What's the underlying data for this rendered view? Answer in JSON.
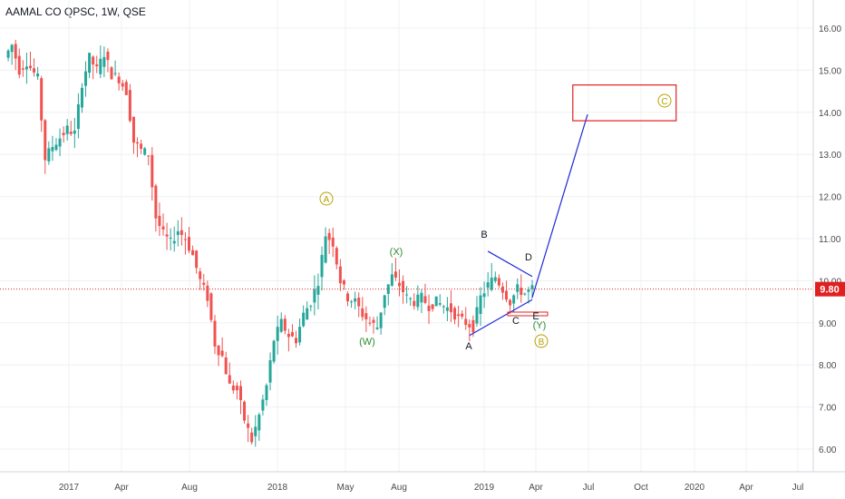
{
  "header": {
    "title": "AAMAL CO QPSC, 1W, QSE"
  },
  "price_axis": {
    "labels": [
      "16.00",
      "15.00",
      "14.00",
      "13.00",
      "12.00",
      "11.00",
      "10.00",
      "9.00",
      "8.00",
      "7.00",
      "6.00"
    ],
    "current_price_label": "9.80"
  },
  "time_axis": {
    "labels": [
      "2017",
      "Apr",
      "Aug",
      "2018",
      "May",
      "Aug",
      "2019",
      "Apr",
      "Jul",
      "Oct",
      "2020",
      "Apr",
      "Jul"
    ]
  },
  "wave_labels": {
    "A_circled": "A",
    "B_circled": "B",
    "C_circled": "C",
    "W": "(W)",
    "X": "(X)",
    "Y": "(Y)",
    "a": "A",
    "b": "B",
    "c": "C",
    "d": "D",
    "e": "E"
  },
  "colors": {
    "up": "#26a69a",
    "down": "#ef5350",
    "trendline": "#1f2ad6",
    "target_box": "#e02020",
    "price_line": "#e02020",
    "grid": "#eef0f3"
  },
  "chart_data": {
    "type": "candlestick",
    "title": "AAMAL CO QPSC, 1W, QSE",
    "ylim": [
      5.6,
      16.6
    ],
    "y_ticks": [
      6,
      7,
      8,
      9,
      10,
      11,
      12,
      13,
      14,
      15,
      16
    ],
    "current_price": 9.8,
    "price_path": [
      [
        0,
        15.3
      ],
      [
        2,
        15.6
      ],
      [
        4,
        15.0
      ],
      [
        6,
        15.2
      ],
      [
        9,
        14.8
      ],
      [
        11,
        12.9
      ],
      [
        13,
        13.2
      ],
      [
        15,
        13.4
      ],
      [
        17,
        13.6
      ],
      [
        19,
        13.5
      ],
      [
        21,
        14.7
      ],
      [
        23,
        15.3
      ],
      [
        25,
        15.0
      ],
      [
        27,
        15.4
      ],
      [
        29,
        14.9
      ],
      [
        31,
        14.8
      ],
      [
        33,
        14.5
      ],
      [
        35,
        13.3
      ],
      [
        37,
        13.1
      ],
      [
        39,
        13.0
      ],
      [
        41,
        11.5
      ],
      [
        43,
        11.1
      ],
      [
        45,
        10.9
      ],
      [
        47,
        11.2
      ],
      [
        49,
        11.0
      ],
      [
        51,
        10.6
      ],
      [
        53,
        10.0
      ],
      [
        55,
        9.6
      ],
      [
        57,
        8.5
      ],
      [
        59,
        8.2
      ],
      [
        61,
        7.5
      ],
      [
        63,
        7.4
      ],
      [
        65,
        6.7
      ],
      [
        67,
        6.2
      ],
      [
        69,
        6.8
      ],
      [
        71,
        7.5
      ],
      [
        73,
        8.6
      ],
      [
        75,
        9.0
      ],
      [
        77,
        8.7
      ],
      [
        79,
        8.6
      ],
      [
        81,
        9.2
      ],
      [
        83,
        9.5
      ],
      [
        85,
        10.0
      ],
      [
        87,
        11.1
      ],
      [
        89,
        10.9
      ],
      [
        91,
        10.0
      ],
      [
        93,
        9.6
      ],
      [
        95,
        9.5
      ],
      [
        97,
        9.2
      ],
      [
        99,
        9.0
      ],
      [
        101,
        8.9
      ],
      [
        103,
        9.7
      ],
      [
        105,
        10.1
      ],
      [
        107,
        9.9
      ],
      [
        109,
        9.6
      ],
      [
        111,
        9.5
      ],
      [
        113,
        9.6
      ],
      [
        115,
        9.4
      ],
      [
        117,
        9.5
      ],
      [
        119,
        9.4
      ],
      [
        121,
        9.3
      ],
      [
        123,
        9.1
      ],
      [
        125,
        9.0
      ],
      [
        127,
        8.9
      ],
      [
        129,
        9.6
      ],
      [
        131,
        9.9
      ],
      [
        133,
        10.1
      ],
      [
        135,
        9.8
      ],
      [
        137,
        9.5
      ],
      [
        139,
        9.8
      ],
      [
        141,
        9.7
      ],
      [
        143,
        9.8
      ]
    ],
    "annotations": {
      "projection_line": [
        [
          143,
          9.6
        ],
        [
          158,
          13.95
        ]
      ],
      "target_box": {
        "x0": 154,
        "x1": 182,
        "y0": 13.8,
        "y1": 14.65
      },
      "triangle_upper": [
        [
          131,
          10.7
        ],
        [
          143,
          10.1
        ]
      ],
      "triangle_lower": [
        [
          126,
          8.7
        ],
        [
          143,
          9.55
        ]
      ]
    }
  }
}
